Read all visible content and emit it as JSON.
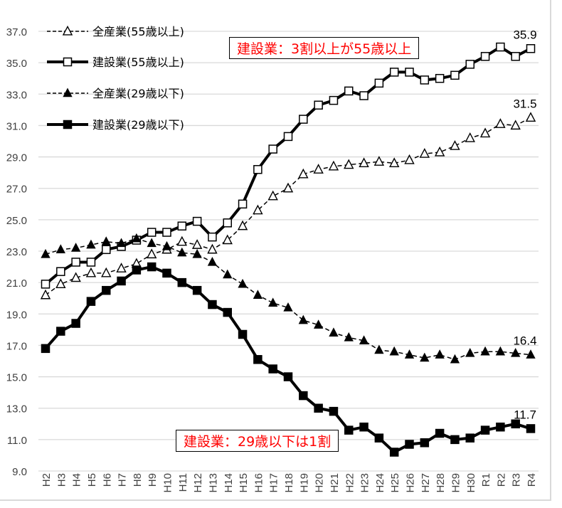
{
  "chart_data": {
    "type": "line",
    "title": "",
    "xlabel": "",
    "ylabel": "",
    "ylim": [
      9.0,
      37.0
    ],
    "ytick_step": 2.0,
    "grid": true,
    "legend_position": "top-left",
    "categories": [
      "H2",
      "H3",
      "H4",
      "H5",
      "H6",
      "H7",
      "H8",
      "H9",
      "H10",
      "H11",
      "H12",
      "H13",
      "H14",
      "H15",
      "H16",
      "H17",
      "H18",
      "H19",
      "H20",
      "H21",
      "H22",
      "H23",
      "H24",
      "H25",
      "H26",
      "H27",
      "H28",
      "H29",
      "H30",
      "R1",
      "R2",
      "R3",
      "R4"
    ],
    "series": [
      {
        "name": "全産業(55歳以上)",
        "style": "dashed",
        "marker": "triangle-open",
        "values": [
          20.2,
          20.9,
          21.3,
          21.6,
          21.6,
          21.9,
          22.2,
          22.8,
          23.1,
          23.6,
          23.4,
          23.1,
          23.7,
          24.6,
          25.6,
          26.5,
          27.0,
          27.9,
          28.2,
          28.4,
          28.5,
          28.6,
          28.7,
          28.6,
          28.8,
          29.2,
          29.3,
          29.7,
          30.2,
          30.5,
          31.1,
          31.0,
          31.5
        ],
        "end_label": "31.5"
      },
      {
        "name": "建設業(55歳以上)",
        "style": "solid",
        "marker": "square-open",
        "values": [
          20.9,
          21.7,
          22.3,
          22.3,
          23.1,
          23.3,
          23.7,
          24.2,
          24.2,
          24.6,
          24.9,
          23.9,
          24.8,
          26.0,
          28.2,
          29.5,
          30.3,
          31.4,
          32.3,
          32.6,
          33.2,
          32.9,
          33.7,
          34.4,
          34.4,
          33.9,
          34.0,
          34.2,
          34.9,
          35.4,
          36.0,
          35.4,
          35.9
        ],
        "end_label": "35.9"
      },
      {
        "name": "全産業(29歳以下)",
        "style": "dashed",
        "marker": "triangle-filled",
        "values": [
          22.8,
          23.1,
          23.2,
          23.4,
          23.6,
          23.5,
          23.8,
          23.5,
          23.3,
          22.9,
          22.8,
          22.3,
          21.5,
          20.9,
          20.2,
          19.7,
          19.4,
          18.6,
          18.3,
          17.8,
          17.5,
          17.3,
          16.7,
          16.6,
          16.4,
          16.2,
          16.4,
          16.1,
          16.5,
          16.6,
          16.6,
          16.5,
          16.4
        ],
        "end_label": "16.4"
      },
      {
        "name": "建設業(29歳以下)",
        "style": "solid",
        "marker": "square-filled",
        "values": [
          16.8,
          17.9,
          18.4,
          19.8,
          20.5,
          21.1,
          21.8,
          22.0,
          21.6,
          21.0,
          20.5,
          19.6,
          19.1,
          17.7,
          16.1,
          15.5,
          15.0,
          13.8,
          13.0,
          12.8,
          11.6,
          11.8,
          11.1,
          10.2,
          10.7,
          10.8,
          11.4,
          11.0,
          11.1,
          11.6,
          11.8,
          12.0,
          11.7
        ],
        "end_label": "11.7"
      }
    ],
    "annotations": [
      "建設業：3割以上が55歳以上",
      "建設業：29歳以下は1割"
    ],
    "colors": {
      "line": "#000000",
      "grid": "#d9d9d9",
      "annotation_text": "#ff0000"
    }
  }
}
